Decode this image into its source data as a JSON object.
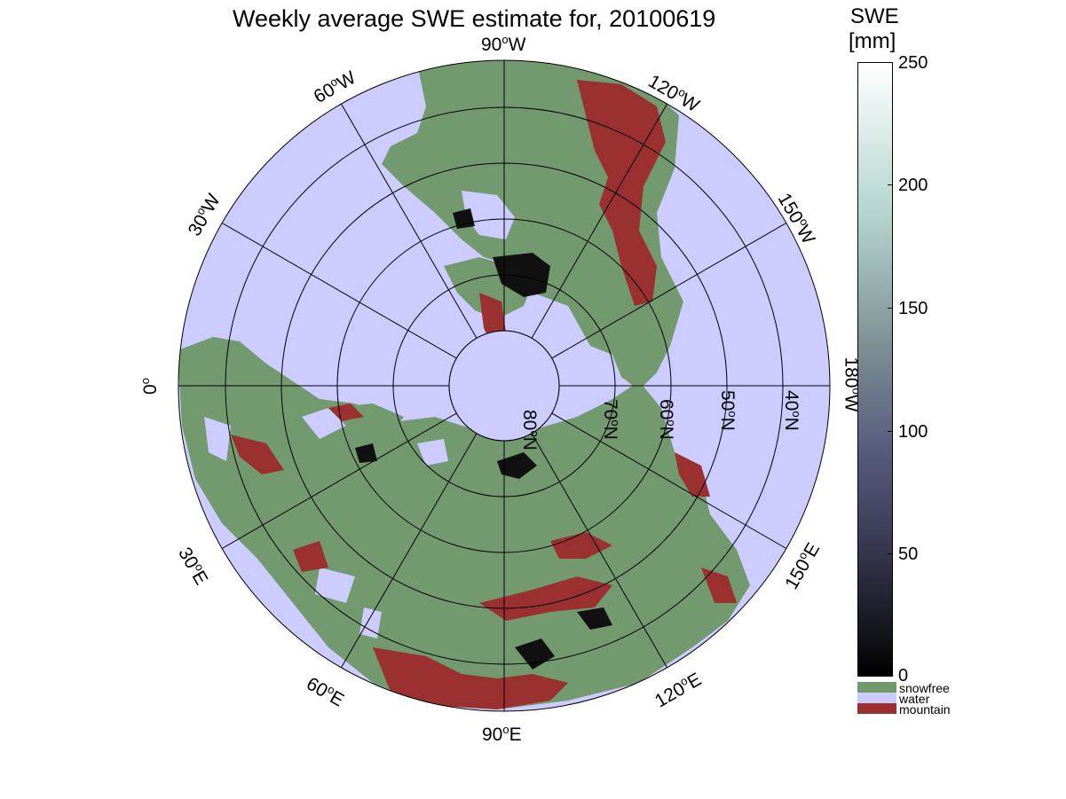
{
  "title": "Weekly average SWE estimate for, 20100619",
  "longitude_labels": {
    "lon_90w": "90",
    "lon_60w": "60",
    "lon_120w": "120",
    "lon_30w": "30",
    "lon_150w": "150",
    "lon_0": "0",
    "lon_180w": "180",
    "lon_30e": "30",
    "lon_150e": "150",
    "lon_60e": "60",
    "lon_120e": "120",
    "lon_90e": "90"
  },
  "longitude_suffix": {
    "W": "W",
    "E": "E",
    "deg": "o"
  },
  "latitude_labels": [
    "80",
    "70",
    "60",
    "50",
    "40"
  ],
  "latitude_suffix": "N",
  "colorbar": {
    "title_line1": "SWE",
    "title_line2": "[mm]",
    "ticks": [
      "250",
      "200",
      "150",
      "100",
      "50",
      "0"
    ],
    "tick_values": [
      250,
      200,
      150,
      100,
      50,
      0
    ],
    "range": [
      0,
      250
    ],
    "categories": [
      {
        "label": "snowfree",
        "color": "#739a6f"
      },
      {
        "label": "water",
        "color": "#ccccff"
      },
      {
        "label": "mountain",
        "color": "#9b3030"
      }
    ]
  },
  "colors": {
    "ocean": "#ccccff",
    "land": "#739a6f",
    "mountain": "#9b3030",
    "snow_low": "#111111"
  }
}
